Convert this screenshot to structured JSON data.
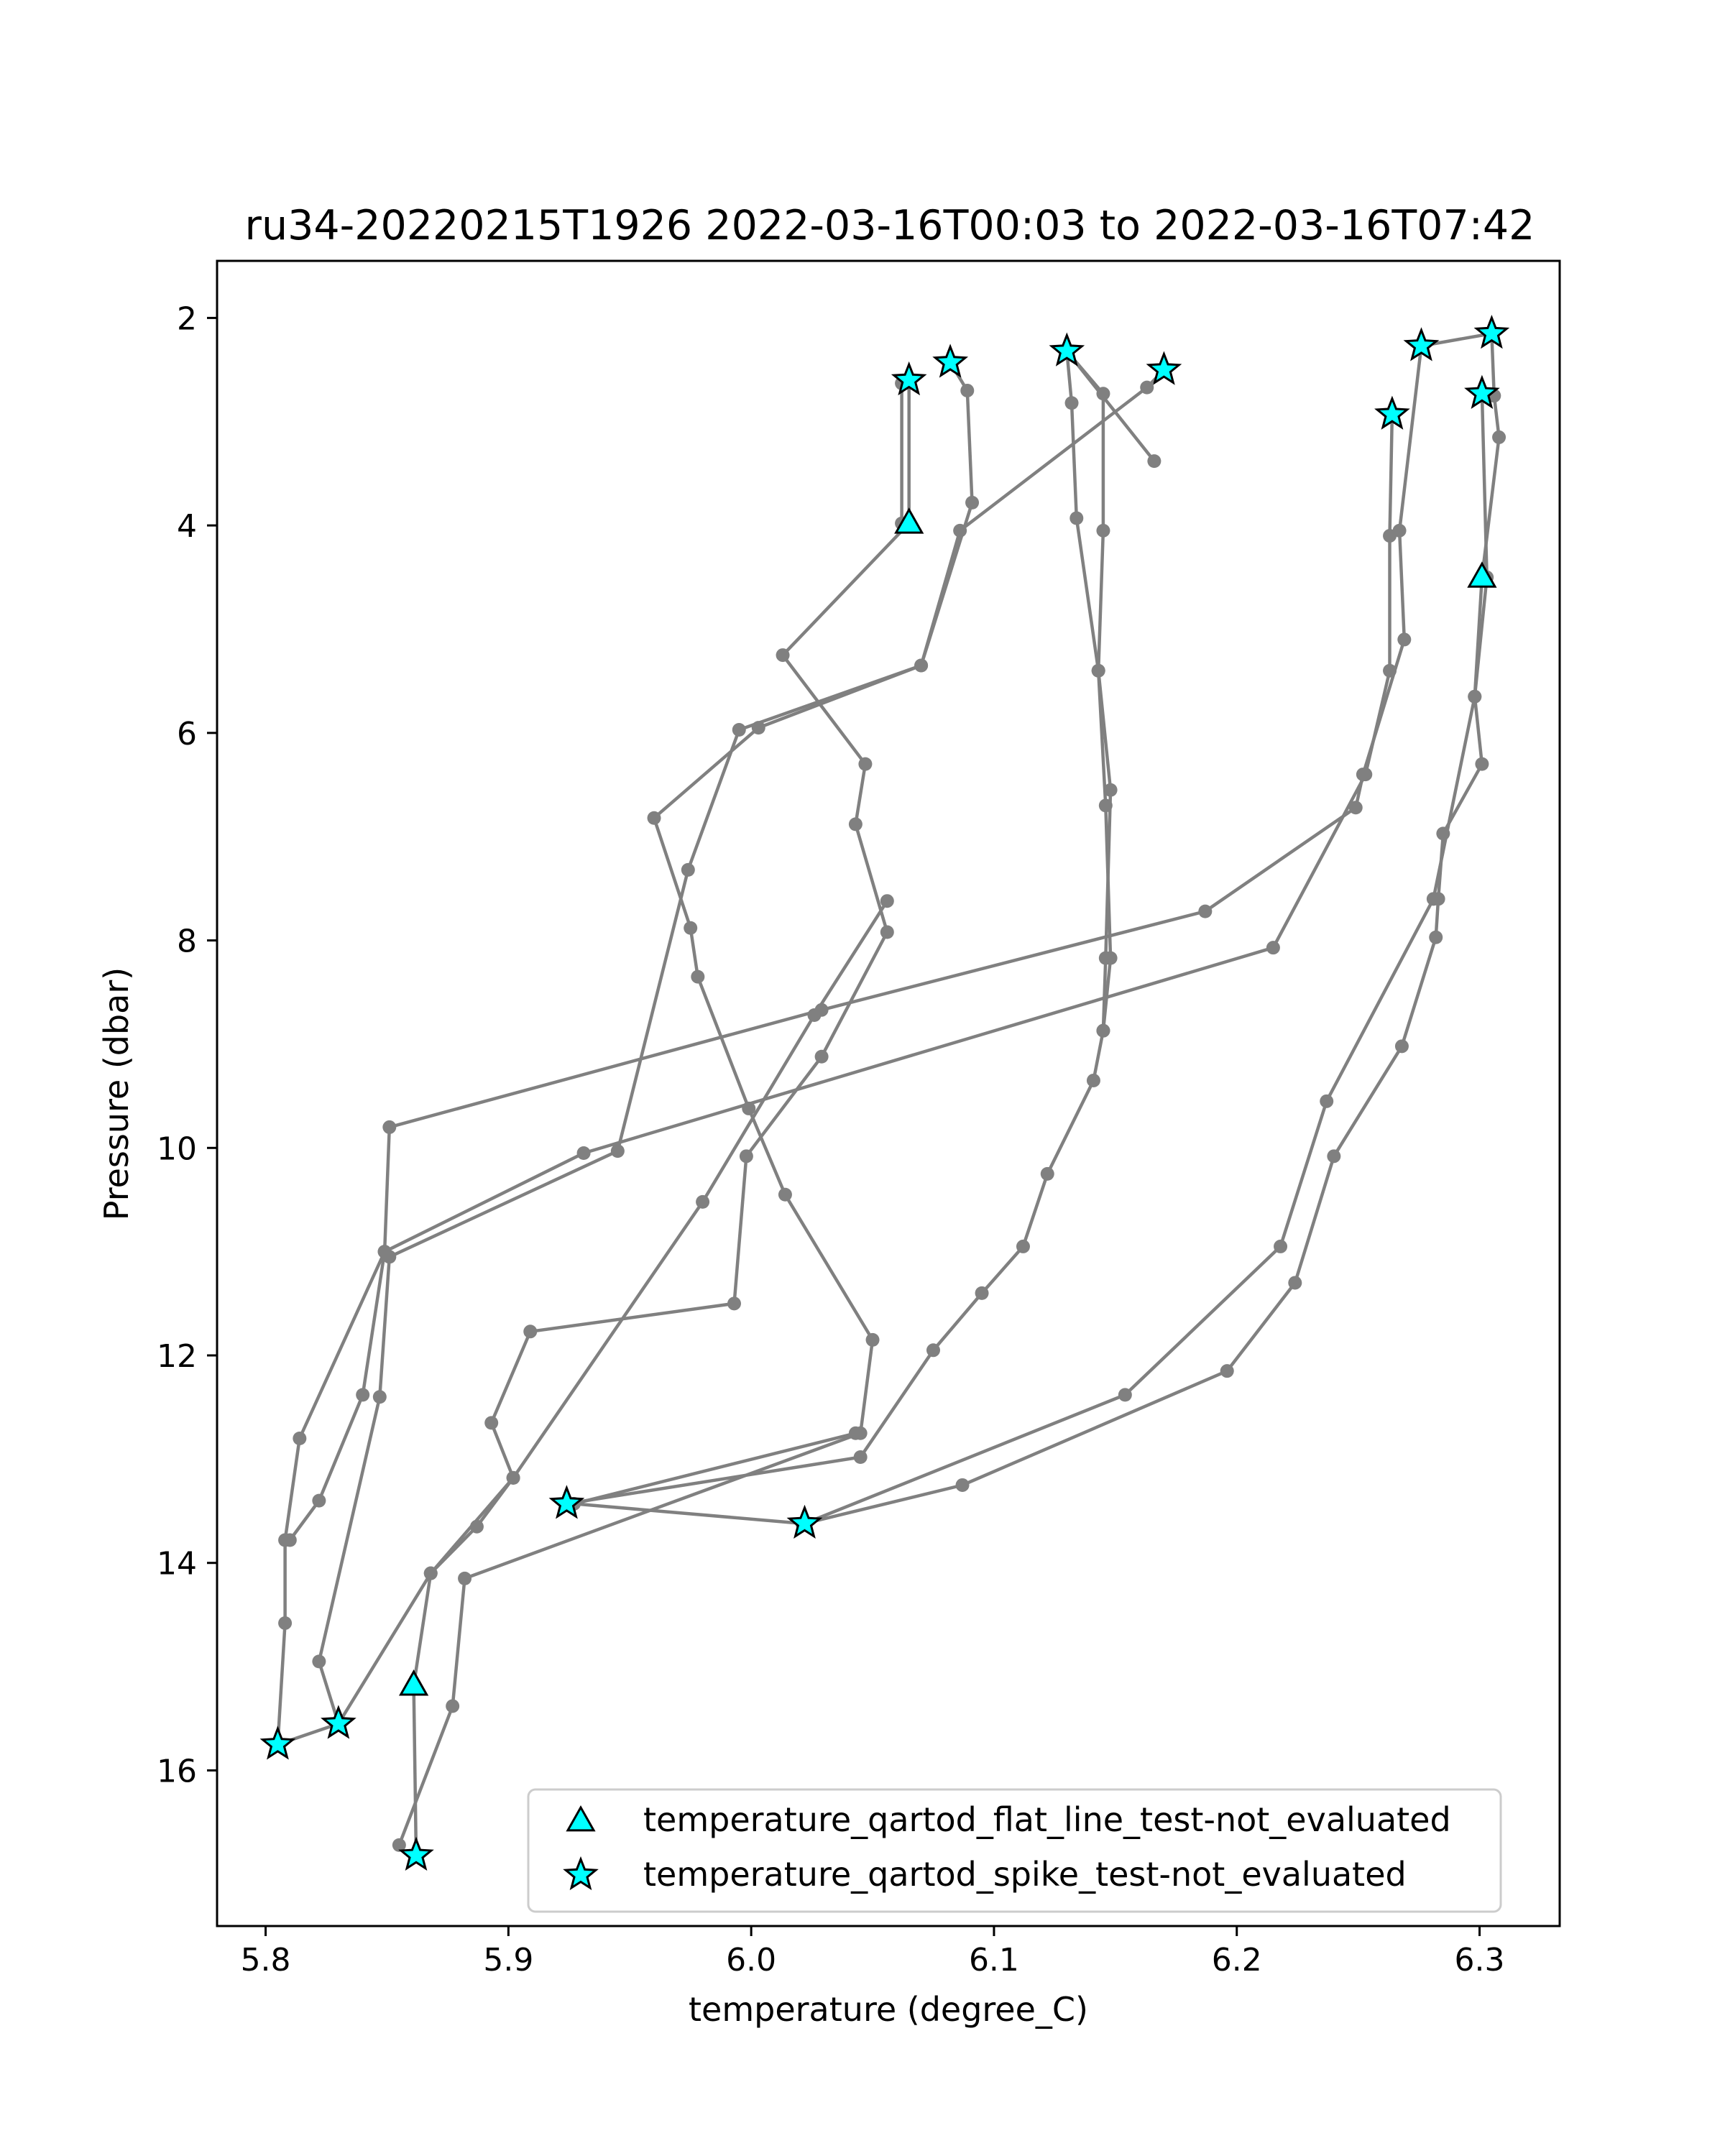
{
  "chart_data": {
    "type": "scatter",
    "title": "ru34-20220215T1926 2022-03-16T00:03 to 2022-03-16T07:42",
    "xlabel": "temperature (degree_C)",
    "ylabel": "Pressure (dbar)",
    "xlim": [
      5.78,
      6.333
    ],
    "ylim": [
      17.5,
      1.45
    ],
    "y_inverted": true,
    "xticks": [
      5.8,
      5.9,
      6.0,
      6.1,
      6.2,
      6.3
    ],
    "xtick_labels": [
      "5.8",
      "5.9",
      "6.0",
      "6.1",
      "6.2",
      "6.3"
    ],
    "yticks": [
      2,
      4,
      6,
      8,
      10,
      12,
      14,
      16
    ],
    "ytick_labels": [
      "2",
      "4",
      "6",
      "8",
      "10",
      "12",
      "14",
      "16"
    ],
    "grid": false,
    "legend_position": "lower right",
    "profile_color": "#808080",
    "marker_fill": "#00ffff",
    "marker_edge": "#000000",
    "profiles": [
      {
        "points": [
          [
            6.065,
            2.6
          ],
          [
            6.065,
            3.98
          ],
          [
            6.013,
            5.25
          ],
          [
            6.047,
            6.3
          ],
          [
            6.043,
            6.88
          ],
          [
            6.056,
            7.92
          ],
          [
            6.029,
            9.12
          ],
          [
            5.998,
            10.08
          ],
          [
            5.993,
            11.5
          ],
          [
            5.909,
            11.77
          ],
          [
            5.893,
            12.65
          ],
          [
            5.902,
            13.18
          ],
          [
            5.887,
            13.65
          ],
          [
            5.868,
            14.1
          ],
          [
            5.83,
            15.55
          ],
          [
            5.805,
            15.75
          ]
        ]
      },
      {
        "points": [
          [
            6.082,
            2.43
          ],
          [
            6.089,
            2.7
          ],
          [
            6.091,
            3.78
          ],
          [
            6.07,
            5.35
          ],
          [
            5.995,
            5.97
          ],
          [
            5.974,
            7.32
          ],
          [
            5.945,
            10.03
          ],
          [
            5.851,
            11.05
          ],
          [
            5.847,
            12.4
          ],
          [
            5.822,
            14.95
          ],
          [
            5.83,
            15.55
          ]
        ]
      },
      {
        "points": [
          [
            6.13,
            2.32
          ],
          [
            6.132,
            2.82
          ],
          [
            6.134,
            3.93
          ],
          [
            6.143,
            5.4
          ],
          [
            6.148,
            6.55
          ],
          [
            6.146,
            8.17
          ],
          [
            6.145,
            8.87
          ],
          [
            6.141,
            9.35
          ],
          [
            6.122,
            10.25
          ],
          [
            6.112,
            10.95
          ],
          [
            6.095,
            11.4
          ],
          [
            6.075,
            11.95
          ],
          [
            6.045,
            12.98
          ],
          [
            5.924,
            13.43
          ]
        ]
      },
      {
        "points": [
          [
            6.17,
            2.5
          ],
          [
            6.163,
            2.67
          ],
          [
            6.086,
            4.05
          ],
          [
            6.07,
            5.35
          ],
          [
            6.003,
            5.95
          ],
          [
            5.96,
            6.82
          ],
          [
            5.975,
            7.88
          ],
          [
            5.978,
            8.35
          ],
          [
            5.999,
            9.62
          ],
          [
            6.014,
            10.45
          ],
          [
            6.05,
            11.85
          ],
          [
            6.045,
            12.75
          ],
          [
            5.882,
            14.15
          ],
          [
            5.877,
            15.38
          ],
          [
            5.855,
            16.72
          ]
        ]
      },
      {
        "points": [
          [
            6.13,
            2.32
          ],
          [
            6.145,
            2.73
          ],
          [
            6.145,
            4.05
          ],
          [
            6.143,
            5.4
          ],
          [
            6.146,
            6.7
          ],
          [
            6.148,
            8.17
          ],
          [
            6.145,
            8.87
          ]
        ]
      },
      {
        "points": [
          [
            6.276,
            2.27
          ],
          [
            6.267,
            4.05
          ],
          [
            6.269,
            5.1
          ],
          [
            6.252,
            6.4
          ],
          [
            6.249,
            6.72
          ],
          [
            6.187,
            7.72
          ],
          [
            6.029,
            8.67
          ],
          [
            5.851,
            9.8
          ],
          [
            5.849,
            11.0
          ],
          [
            5.814,
            12.8
          ],
          [
            5.808,
            13.78
          ],
          [
            5.808,
            14.58
          ],
          [
            5.805,
            15.75
          ]
        ]
      },
      {
        "points": [
          [
            6.264,
            2.93
          ],
          [
            6.263,
            4.1
          ],
          [
            6.263,
            5.4
          ],
          [
            6.253,
            6.4
          ],
          [
            6.215,
            8.07
          ],
          [
            5.931,
            10.05
          ],
          [
            5.849,
            11.0
          ],
          [
            5.84,
            12.38
          ],
          [
            5.822,
            13.4
          ],
          [
            5.81,
            13.78
          ]
        ]
      },
      {
        "points": [
          [
            6.305,
            2.15
          ],
          [
            6.306,
            2.75
          ],
          [
            6.308,
            3.15
          ],
          [
            6.301,
            4.5
          ],
          [
            6.298,
            5.65
          ],
          [
            6.301,
            6.3
          ],
          [
            6.285,
            6.97
          ],
          [
            6.283,
            7.6
          ],
          [
            6.282,
            7.97
          ],
          [
            6.268,
            9.02
          ],
          [
            6.24,
            10.08
          ],
          [
            6.224,
            11.3
          ],
          [
            6.196,
            12.15
          ],
          [
            6.087,
            13.25
          ],
          [
            6.022,
            13.62
          ]
        ]
      },
      {
        "points": [
          [
            6.301,
            2.73
          ],
          [
            6.303,
            4.5
          ],
          [
            6.298,
            5.65
          ],
          [
            6.281,
            7.6
          ],
          [
            6.237,
            9.55
          ],
          [
            6.218,
            10.95
          ],
          [
            6.154,
            12.38
          ],
          [
            6.022,
            13.62
          ]
        ]
      },
      {
        "points": [
          [
            6.062,
            2.63
          ],
          [
            6.062,
            3.98
          ]
        ]
      },
      {
        "points": [
          [
            6.166,
            3.38
          ],
          [
            6.13,
            2.32
          ]
        ]
      },
      {
        "points": [
          [
            5.861,
            15.18
          ],
          [
            5.862,
            16.82
          ]
        ]
      },
      {
        "points": [
          [
            6.276,
            2.27
          ],
          [
            6.305,
            2.15
          ]
        ]
      },
      {
        "points": [
          [
            6.056,
            7.62
          ],
          [
            6.026,
            8.72
          ],
          [
            5.98,
            10.52
          ],
          [
            5.902,
            13.18
          ],
          [
            5.868,
            14.1
          ],
          [
            5.861,
            15.18
          ]
        ]
      },
      {
        "points": [
          [
            6.043,
            12.75
          ],
          [
            5.927,
            13.43
          ],
          [
            6.021,
            13.62
          ]
        ]
      }
    ],
    "series": [
      {
        "name": "temperature_qartod_flat_line_test-not_evaluated",
        "marker": "triangle",
        "points": [
          [
            6.065,
            3.98
          ],
          [
            6.301,
            4.5
          ],
          [
            5.861,
            15.18
          ]
        ]
      },
      {
        "name": "temperature_qartod_spike_test-not_evaluated",
        "marker": "star",
        "points": [
          [
            6.065,
            2.6
          ],
          [
            6.082,
            2.43
          ],
          [
            6.13,
            2.32
          ],
          [
            6.17,
            2.5
          ],
          [
            6.276,
            2.27
          ],
          [
            6.305,
            2.15
          ],
          [
            6.264,
            2.93
          ],
          [
            6.301,
            2.73
          ],
          [
            5.924,
            13.43
          ],
          [
            6.022,
            13.62
          ],
          [
            5.805,
            15.75
          ],
          [
            5.83,
            15.55
          ],
          [
            5.862,
            16.82
          ]
        ]
      }
    ]
  }
}
